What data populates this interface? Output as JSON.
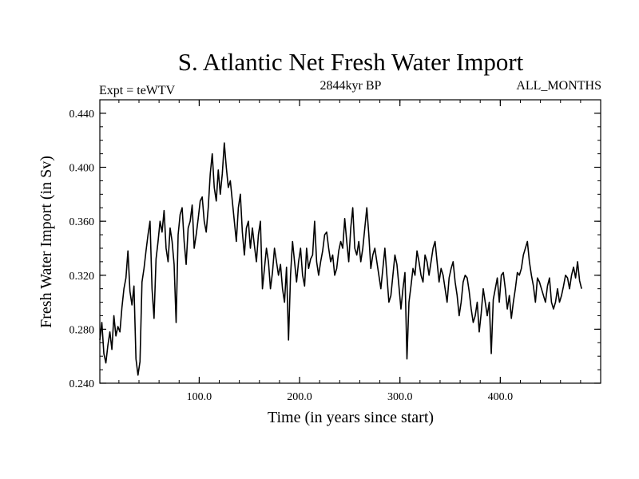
{
  "chart_data": {
    "type": "line",
    "title": "S. Atlantic Net Fresh Water Import",
    "subtitle_left": "Expt = teWTV",
    "subtitle_center": "2844kyr BP",
    "subtitle_right": "ALL_MONTHS",
    "xlabel": "Time (in years since start)",
    "ylabel": "Fresh Water Import (in Sv)",
    "xlim": [
      1,
      500
    ],
    "ylim": [
      0.24,
      0.45
    ],
    "xticks": [
      100,
      200,
      300,
      400
    ],
    "xtick_labels": [
      "100.0",
      "200.0",
      "300.0",
      "400.0"
    ],
    "yticks": [
      0.24,
      0.28,
      0.32,
      0.36,
      0.4,
      0.44
    ],
    "ytick_labels": [
      "0.240",
      "0.280",
      "0.320",
      "0.360",
      "0.400",
      "0.440"
    ],
    "x_minor_step": 20,
    "y_minor_step": 0.01,
    "grid": false,
    "series": [
      {
        "name": "Fresh Water Import",
        "color": "#000000",
        "x_start": 1,
        "x_step": 2,
        "values": [
          0.272,
          0.285,
          0.262,
          0.255,
          0.268,
          0.278,
          0.265,
          0.29,
          0.275,
          0.282,
          0.278,
          0.296,
          0.31,
          0.318,
          0.338,
          0.308,
          0.298,
          0.312,
          0.258,
          0.246,
          0.256,
          0.315,
          0.325,
          0.338,
          0.35,
          0.36,
          0.31,
          0.288,
          0.332,
          0.345,
          0.36,
          0.352,
          0.368,
          0.34,
          0.33,
          0.355,
          0.345,
          0.328,
          0.285,
          0.35,
          0.365,
          0.37,
          0.345,
          0.328,
          0.355,
          0.36,
          0.372,
          0.34,
          0.35,
          0.362,
          0.375,
          0.378,
          0.36,
          0.352,
          0.37,
          0.395,
          0.41,
          0.385,
          0.375,
          0.398,
          0.38,
          0.395,
          0.418,
          0.4,
          0.385,
          0.39,
          0.375,
          0.36,
          0.345,
          0.37,
          0.38,
          0.352,
          0.335,
          0.355,
          0.36,
          0.34,
          0.355,
          0.342,
          0.33,
          0.35,
          0.36,
          0.31,
          0.325,
          0.34,
          0.33,
          0.31,
          0.322,
          0.34,
          0.33,
          0.32,
          0.328,
          0.31,
          0.3,
          0.326,
          0.272,
          0.32,
          0.345,
          0.33,
          0.315,
          0.33,
          0.34,
          0.32,
          0.312,
          0.34,
          0.325,
          0.332,
          0.335,
          0.36,
          0.33,
          0.32,
          0.33,
          0.338,
          0.35,
          0.352,
          0.34,
          0.33,
          0.335,
          0.32,
          0.325,
          0.338,
          0.345,
          0.34,
          0.362,
          0.345,
          0.33,
          0.355,
          0.37,
          0.34,
          0.335,
          0.345,
          0.33,
          0.34,
          0.355,
          0.37,
          0.35,
          0.325,
          0.335,
          0.34,
          0.33,
          0.32,
          0.31,
          0.325,
          0.34,
          0.32,
          0.3,
          0.305,
          0.32,
          0.335,
          0.328,
          0.312,
          0.295,
          0.31,
          0.322,
          0.258,
          0.3,
          0.312,
          0.325,
          0.32,
          0.338,
          0.33,
          0.32,
          0.315,
          0.335,
          0.33,
          0.32,
          0.33,
          0.34,
          0.345,
          0.33,
          0.315,
          0.325,
          0.32,
          0.31,
          0.3,
          0.318,
          0.325,
          0.33,
          0.315,
          0.305,
          0.29,
          0.3,
          0.315,
          0.32,
          0.318,
          0.308,
          0.295,
          0.285,
          0.29,
          0.3,
          0.278,
          0.292,
          0.31,
          0.3,
          0.29,
          0.3,
          0.262,
          0.302,
          0.31,
          0.318,
          0.3,
          0.32,
          0.322,
          0.31,
          0.295,
          0.305,
          0.288,
          0.3,
          0.31,
          0.322,
          0.32,
          0.325,
          0.335,
          0.34,
          0.345,
          0.33,
          0.32,
          0.312,
          0.3,
          0.318,
          0.315,
          0.31,
          0.305,
          0.3,
          0.312,
          0.318,
          0.3,
          0.295,
          0.3,
          0.31,
          0.3,
          0.305,
          0.312,
          0.32,
          0.318,
          0.31,
          0.32,
          0.326,
          0.318,
          0.33,
          0.316,
          0.31
        ]
      }
    ]
  }
}
